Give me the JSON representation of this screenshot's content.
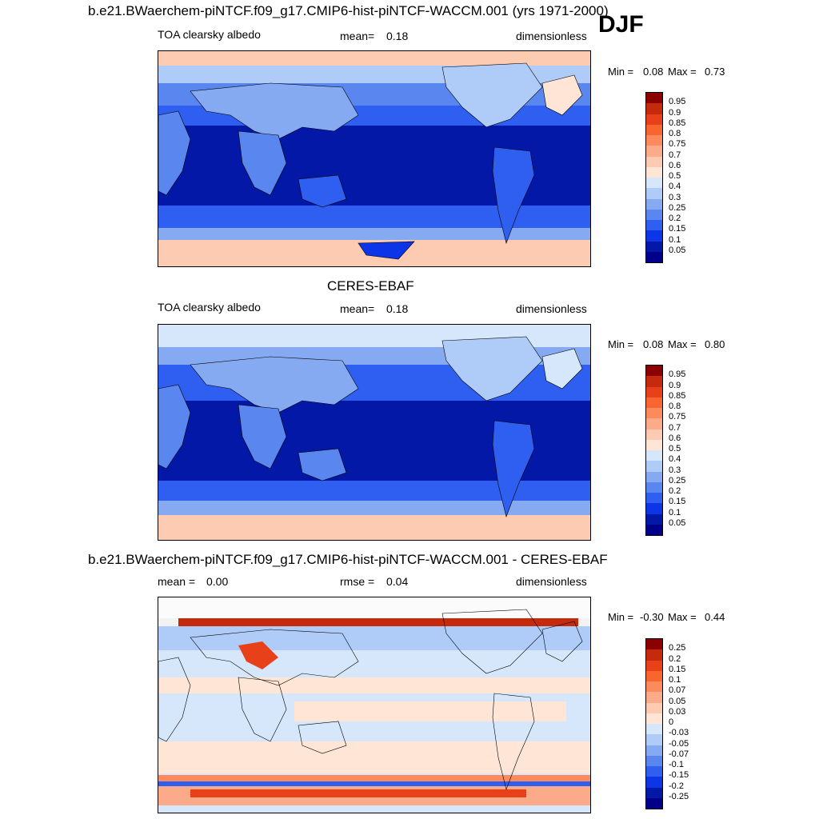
{
  "header": {
    "main_title": "b.e21.BWaerchem-piNTCF.f09_g17.CMIP6-hist-piNTCF-WACCM.001 (yrs 1971-2000)",
    "season": "DJF"
  },
  "panels": [
    {
      "title": "",
      "variable": "TOA clearsky albedo",
      "stat_label": "mean=",
      "stat_value": "0.18",
      "units": "dimensionless",
      "min_label": "Min =",
      "min_value": "0.08",
      "max_label": "Max =",
      "max_value": "0.73",
      "colorbar_labels": [
        "0.95",
        "0.9",
        "0.85",
        "0.8",
        "0.75",
        "0.7",
        "0.6",
        "0.5",
        "0.4",
        "0.3",
        "0.25",
        "0.2",
        "0.15",
        "0.1",
        "0.05"
      ]
    },
    {
      "title": "CERES-EBAF",
      "variable": "TOA clearsky albedo",
      "stat_label": "mean=",
      "stat_value": "0.18",
      "units": "dimensionless",
      "min_label": "Min =",
      "min_value": "0.08",
      "max_label": "Max =",
      "max_value": "0.80",
      "colorbar_labels": [
        "0.95",
        "0.9",
        "0.85",
        "0.8",
        "0.75",
        "0.7",
        "0.6",
        "0.5",
        "0.4",
        "0.3",
        "0.25",
        "0.2",
        "0.15",
        "0.1",
        "0.05"
      ]
    },
    {
      "title": "b.e21.BWaerchem-piNTCF.f09_g17.CMIP6-hist-piNTCF-WACCM.001 - CERES-EBAF",
      "stat1_label": "mean =",
      "stat1_value": "0.00",
      "stat2_label": "rmse =",
      "stat2_value": "0.04",
      "units": "dimensionless",
      "min_label": "Min =",
      "min_value": "-0.30",
      "max_label": "Max =",
      "max_value": "0.44",
      "colorbar_labels": [
        "0.25",
        "0.2",
        "0.15",
        "0.1",
        "0.07",
        "0.05",
        "0.03",
        "0",
        "-0.03",
        "-0.05",
        "-0.07",
        "-0.1",
        "-0.15",
        "-0.2",
        "-0.25"
      ]
    }
  ],
  "colors": {
    "abs_scale": [
      "#8b0000",
      "#c62a0c",
      "#e8411a",
      "#f9652f",
      "#fb8a5d",
      "#fcab8a",
      "#fdcab2",
      "#fee5d6",
      "#d6e6fb",
      "#afcbf7",
      "#86aaf2",
      "#5a86ef",
      "#2f5ff1",
      "#0b35e6",
      "#0418a8",
      "#00008b"
    ],
    "diff_scale": [
      "#8b0000",
      "#c62a0c",
      "#e8411a",
      "#f9652f",
      "#fb8a5d",
      "#fcab8a",
      "#fdcab2",
      "#fee5d6",
      "#d6e6fb",
      "#afcbf7",
      "#86aaf2",
      "#5a86ef",
      "#2f5ff1",
      "#0b35e6",
      "#0418a8",
      "#00008b"
    ]
  }
}
